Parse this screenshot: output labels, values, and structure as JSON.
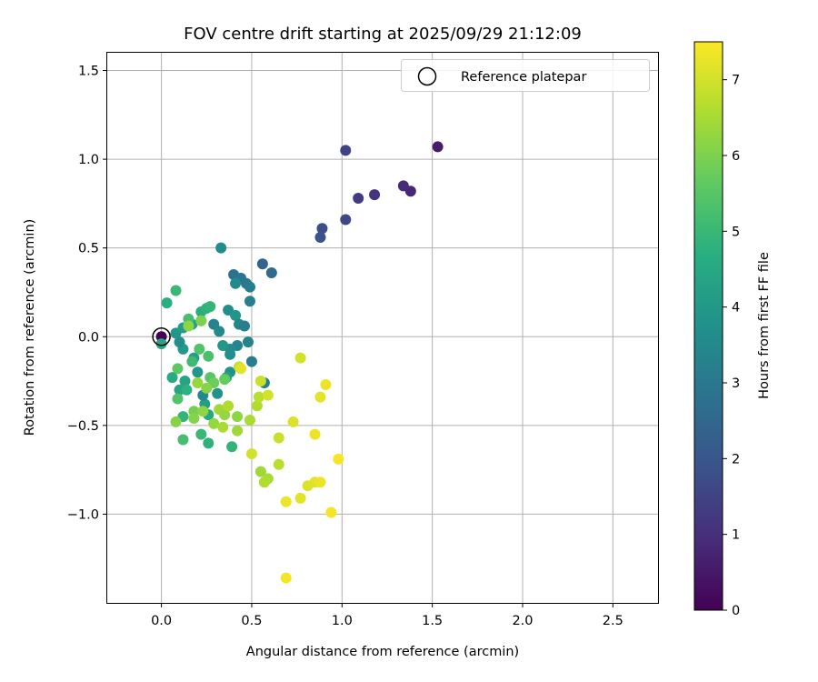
{
  "chart_data": {
    "type": "scatter",
    "title": "FOV centre drift starting at 2025/09/29 21:12:09",
    "xlabel": "Angular distance from reference (arcmin)",
    "ylabel": "Rotation from reference (arcmin)",
    "xlim": [
      -0.3,
      2.75
    ],
    "ylim": [
      -1.5,
      1.6
    ],
    "xticks": [
      0.0,
      0.5,
      1.0,
      1.5,
      2.0,
      2.5
    ],
    "xtick_labels": [
      "0.0",
      "0.5",
      "1.0",
      "1.5",
      "2.0",
      "2.5"
    ],
    "yticks": [
      1.5,
      1.0,
      0.5,
      0.0,
      -0.5,
      -1.0
    ],
    "ytick_labels": [
      "1.5",
      "1.0",
      "0.5",
      "0.0",
      "−0.5",
      "−1.0"
    ],
    "grid": true,
    "legend": {
      "position": "top-right",
      "label": "Reference platepar"
    },
    "reference_point": {
      "x": 0.0,
      "y": 0.0
    },
    "colorbar": {
      "label": "Hours from first FF file",
      "range": [
        0,
        7.5
      ],
      "ticks": [
        0,
        1,
        2,
        3,
        4,
        5,
        6,
        7
      ],
      "tick_labels": [
        "0",
        "1",
        "2",
        "3",
        "4",
        "5",
        "6",
        "7"
      ],
      "colormap": "viridis",
      "stops": [
        "#440154",
        "#472d7b",
        "#3b528b",
        "#2c728e",
        "#21918c",
        "#28ae80",
        "#5ec962",
        "#addc30",
        "#fde725"
      ]
    },
    "points": [
      {
        "x": 0.0,
        "y": 0.0,
        "h": 0.0
      },
      {
        "x": 1.53,
        "y": 1.07,
        "h": 0.6
      },
      {
        "x": 1.38,
        "y": 0.82,
        "h": 0.8
      },
      {
        "x": 1.34,
        "y": 0.85,
        "h": 0.9
      },
      {
        "x": 1.18,
        "y": 0.8,
        "h": 1.1
      },
      {
        "x": 1.09,
        "y": 0.78,
        "h": 1.3
      },
      {
        "x": 1.02,
        "y": 1.05,
        "h": 1.5
      },
      {
        "x": 1.02,
        "y": 0.66,
        "h": 1.6
      },
      {
        "x": 0.89,
        "y": 0.61,
        "h": 1.8
      },
      {
        "x": 0.88,
        "y": 0.56,
        "h": 1.9
      },
      {
        "x": 0.56,
        "y": 0.41,
        "h": 2.4
      },
      {
        "x": 0.61,
        "y": 0.36,
        "h": 2.6
      },
      {
        "x": 0.4,
        "y": 0.35,
        "h": 2.8
      },
      {
        "x": 0.44,
        "y": 0.33,
        "h": 2.9
      },
      {
        "x": 0.47,
        "y": 0.3,
        "h": 3.0
      },
      {
        "x": 0.49,
        "y": 0.28,
        "h": 3.1
      },
      {
        "x": 0.41,
        "y": 0.3,
        "h": 3.5
      },
      {
        "x": 0.49,
        "y": 0.2,
        "h": 3.2
      },
      {
        "x": 0.33,
        "y": 0.5,
        "h": 3.6
      },
      {
        "x": 0.37,
        "y": 0.15,
        "h": 3.7
      },
      {
        "x": 0.41,
        "y": 0.12,
        "h": 3.9
      },
      {
        "x": 0.43,
        "y": 0.07,
        "h": 3.4
      },
      {
        "x": 0.46,
        "y": 0.06,
        "h": 3.2
      },
      {
        "x": 0.29,
        "y": 0.07,
        "h": 3.3
      },
      {
        "x": 0.32,
        "y": 0.03,
        "h": 3.5
      },
      {
        "x": 0.48,
        "y": -0.03,
        "h": 3.3
      },
      {
        "x": 0.42,
        "y": -0.05,
        "h": 3.4
      },
      {
        "x": 0.38,
        "y": -0.07,
        "h": 3.6
      },
      {
        "x": 0.34,
        "y": -0.05,
        "h": 3.9
      },
      {
        "x": 0.38,
        "y": -0.1,
        "h": 3.7
      },
      {
        "x": 0.5,
        "y": -0.14,
        "h": 3.1
      },
      {
        "x": 0.38,
        "y": -0.2,
        "h": 3.8
      },
      {
        "x": 0.36,
        "y": -0.23,
        "h": 4.3
      },
      {
        "x": 0.57,
        "y": -0.26,
        "h": 3.2
      },
      {
        "x": 0.31,
        "y": -0.32,
        "h": 3.8
      },
      {
        "x": 0.24,
        "y": -0.38,
        "h": 4.1
      },
      {
        "x": 0.23,
        "y": -0.33,
        "h": 3.5
      },
      {
        "x": 0.2,
        "y": -0.2,
        "h": 3.9
      },
      {
        "x": 0.18,
        "y": -0.12,
        "h": 4.2
      },
      {
        "x": 0.12,
        "y": -0.07,
        "h": 4.0
      },
      {
        "x": 0.1,
        "y": -0.03,
        "h": 3.7
      },
      {
        "x": 0.08,
        "y": 0.02,
        "h": 3.9
      },
      {
        "x": 0.12,
        "y": 0.05,
        "h": 4.1
      },
      {
        "x": 0.17,
        "y": 0.07,
        "h": 4.3
      },
      {
        "x": 0.22,
        "y": 0.09,
        "h": 4.5
      },
      {
        "x": 0.22,
        "y": 0.14,
        "h": 4.7
      },
      {
        "x": 0.25,
        "y": 0.16,
        "h": 4.8
      },
      {
        "x": 0.27,
        "y": 0.17,
        "h": 4.9
      },
      {
        "x": 0.15,
        "y": 0.1,
        "h": 5.2
      },
      {
        "x": 0.08,
        "y": 0.26,
        "h": 5.0
      },
      {
        "x": 0.03,
        "y": 0.19,
        "h": 4.7
      },
      {
        "x": 0.0,
        "y": -0.04,
        "h": 4.4
      },
      {
        "x": 0.13,
        "y": -0.25,
        "h": 4.4
      },
      {
        "x": 0.06,
        "y": -0.23,
        "h": 4.6
      },
      {
        "x": 0.1,
        "y": -0.3,
        "h": 4.4
      },
      {
        "x": 0.14,
        "y": -0.3,
        "h": 4.8
      },
      {
        "x": 0.26,
        "y": -0.44,
        "h": 4.5
      },
      {
        "x": 0.12,
        "y": -0.45,
        "h": 4.9
      },
      {
        "x": 0.22,
        "y": -0.55,
        "h": 5.0
      },
      {
        "x": 0.12,
        "y": -0.58,
        "h": 5.2
      },
      {
        "x": 0.26,
        "y": -0.6,
        "h": 4.8
      },
      {
        "x": 0.39,
        "y": -0.62,
        "h": 4.9
      },
      {
        "x": 0.21,
        "y": -0.07,
        "h": 5.4
      },
      {
        "x": 0.17,
        "y": -0.14,
        "h": 5.1
      },
      {
        "x": 0.26,
        "y": -0.11,
        "h": 5.3
      },
      {
        "x": 0.27,
        "y": -0.23,
        "h": 5.5
      },
      {
        "x": 0.29,
        "y": -0.26,
        "h": 5.8
      },
      {
        "x": 0.35,
        "y": -0.24,
        "h": 5.7
      },
      {
        "x": 0.09,
        "y": -0.18,
        "h": 5.6
      },
      {
        "x": 0.09,
        "y": -0.35,
        "h": 5.4
      },
      {
        "x": 0.18,
        "y": -0.42,
        "h": 5.9
      },
      {
        "x": 0.22,
        "y": 0.09,
        "h": 6.0
      },
      {
        "x": 0.15,
        "y": 0.06,
        "h": 6.2
      },
      {
        "x": 0.2,
        "y": -0.26,
        "h": 6.3
      },
      {
        "x": 0.25,
        "y": -0.29,
        "h": 6.1
      },
      {
        "x": 0.23,
        "y": -0.42,
        "h": 6.2
      },
      {
        "x": 0.18,
        "y": -0.46,
        "h": 6.1
      },
      {
        "x": 0.29,
        "y": -0.49,
        "h": 6.3
      },
      {
        "x": 0.34,
        "y": -0.51,
        "h": 6.5
      },
      {
        "x": 0.32,
        "y": -0.41,
        "h": 6.4
      },
      {
        "x": 0.35,
        "y": -0.44,
        "h": 6.3
      },
      {
        "x": 0.37,
        "y": -0.39,
        "h": 6.6
      },
      {
        "x": 0.42,
        "y": -0.45,
        "h": 6.2
      },
      {
        "x": 0.42,
        "y": -0.53,
        "h": 6.4
      },
      {
        "x": 0.49,
        "y": -0.47,
        "h": 6.5
      },
      {
        "x": 0.53,
        "y": -0.39,
        "h": 6.6
      },
      {
        "x": 0.54,
        "y": -0.34,
        "h": 6.7
      },
      {
        "x": 0.08,
        "y": -0.48,
        "h": 6.1
      },
      {
        "x": 0.43,
        "y": -0.17,
        "h": 6.8
      },
      {
        "x": 0.55,
        "y": -0.25,
        "h": 6.9
      },
      {
        "x": 0.59,
        "y": -0.33,
        "h": 7.0
      },
      {
        "x": 0.55,
        "y": -0.76,
        "h": 6.4
      },
      {
        "x": 0.59,
        "y": -0.8,
        "h": 6.5
      },
      {
        "x": 0.57,
        "y": -0.82,
        "h": 6.6
      },
      {
        "x": 0.65,
        "y": -0.72,
        "h": 6.7
      },
      {
        "x": 0.65,
        "y": -0.57,
        "h": 6.9
      },
      {
        "x": 0.5,
        "y": -0.66,
        "h": 7.0
      },
      {
        "x": 0.73,
        "y": -0.48,
        "h": 7.1
      },
      {
        "x": 0.77,
        "y": -0.12,
        "h": 7.0
      },
      {
        "x": 0.44,
        "y": -0.18,
        "h": 7.2
      },
      {
        "x": 0.91,
        "y": -0.27,
        "h": 7.3
      },
      {
        "x": 0.88,
        "y": -0.34,
        "h": 7.2
      },
      {
        "x": 0.85,
        "y": -0.55,
        "h": 7.3
      },
      {
        "x": 0.98,
        "y": -0.69,
        "h": 7.4
      },
      {
        "x": 0.85,
        "y": -0.82,
        "h": 7.2
      },
      {
        "x": 0.88,
        "y": -0.82,
        "h": 7.3
      },
      {
        "x": 0.81,
        "y": -0.84,
        "h": 7.1
      },
      {
        "x": 0.77,
        "y": -0.91,
        "h": 7.2
      },
      {
        "x": 0.69,
        "y": -0.93,
        "h": 7.3
      },
      {
        "x": 0.94,
        "y": -0.99,
        "h": 7.4
      },
      {
        "x": 0.69,
        "y": -1.36,
        "h": 7.4
      }
    ]
  }
}
